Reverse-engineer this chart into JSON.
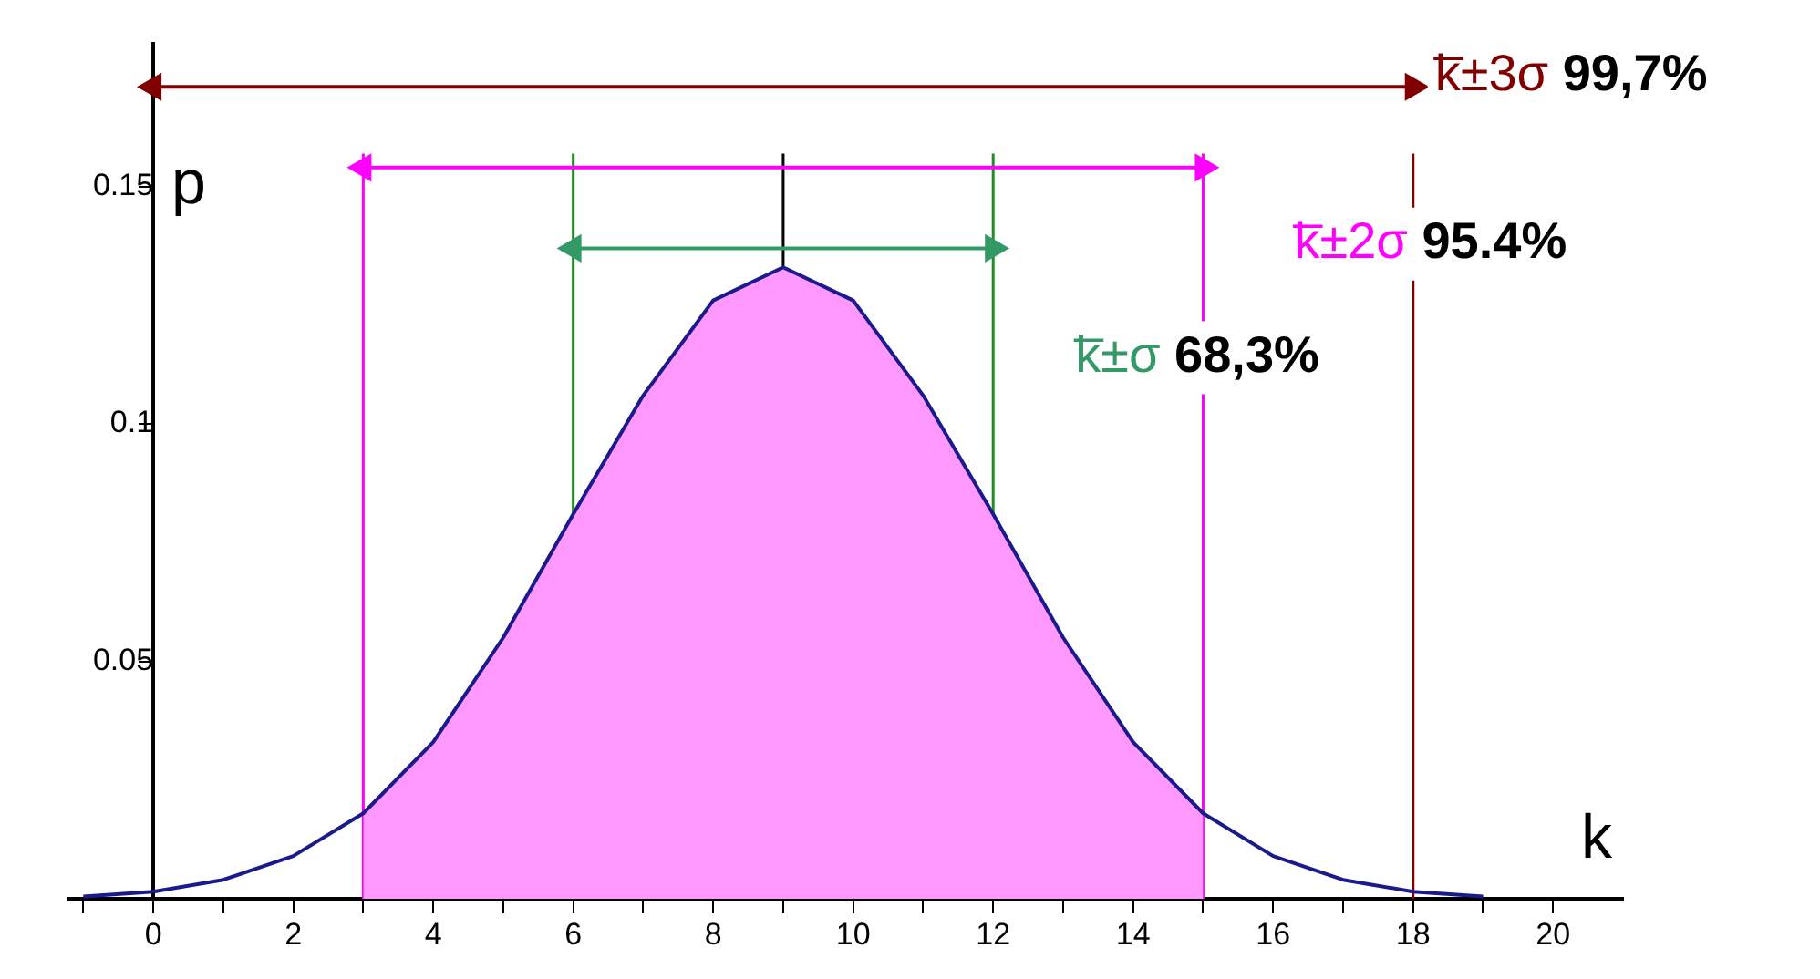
{
  "chart_data": {
    "type": "line",
    "xlabel": "k",
    "ylabel": "p",
    "x": [
      -1,
      0,
      1,
      2,
      3,
      4,
      5,
      6,
      7,
      8,
      9,
      10,
      11,
      12,
      13,
      14,
      15,
      16,
      17,
      18,
      19
    ],
    "xlim": [
      -1.2,
      21
    ],
    "ylim": [
      0,
      0.18
    ],
    "xticks": [
      {
        "value": -1,
        "label": null
      },
      0,
      {
        "value": 1,
        "label": null
      },
      2,
      {
        "value": 3,
        "label": null
      },
      4,
      {
        "value": 5,
        "label": null
      },
      6,
      {
        "value": 7,
        "label": null
      },
      8,
      {
        "value": 9,
        "label": null
      },
      10,
      {
        "value": 11,
        "label": null
      },
      12,
      {
        "value": 13,
        "label": null
      },
      14,
      {
        "value": 15,
        "label": null
      },
      16,
      {
        "value": 17,
        "label": null
      },
      18,
      {
        "value": 19,
        "label": null
      },
      20
    ],
    "yticks": [
      0.05,
      0.1,
      0.15
    ],
    "series": [
      {
        "color": "#1a1a8c",
        "values": [
          0.0005,
          0.0015,
          0.004,
          0.009,
          0.018,
          0.033,
          0.055,
          0.081,
          0.106,
          0.126,
          0.133,
          0.126,
          0.106,
          0.081,
          0.055,
          0.033,
          0.018,
          0.009,
          0.004,
          0.0015,
          0.0005
        ]
      },
      {
        "type": "area",
        "color": "#ff99ff",
        "x": [
          3,
          4,
          5,
          6,
          7,
          8,
          9,
          10,
          11,
          12,
          13,
          14,
          15
        ],
        "values": [
          0.018,
          0.033,
          0.055,
          0.081,
          0.106,
          0.126,
          0.133,
          0.126,
          0.106,
          0.081,
          0.055,
          0.033,
          0.018
        ]
      },
      {
        "type": "line",
        "marker": "triangle",
        "name": "k̅±3σ",
        "color": "#800000",
        "x": [
          0,
          18
        ],
        "values": [
          0.171,
          0.171
        ]
      },
      {
        "type": "line",
        "marker": "triangle",
        "name": "k̅±2σ",
        "color": "#ff00ff",
        "x": [
          3,
          15
        ],
        "values": [
          0.154,
          0.154
        ]
      },
      {
        "type": "line",
        "marker": "triangle",
        "name": "k̅±σ",
        "color": "#339966",
        "x": [
          6,
          12
        ],
        "values": [
          0.137,
          0.137
        ]
      }
    ],
    "annotations": [
      "99,7%",
      "95.4%",
      "68,3%"
    ],
    "ref_lines": [
      {
        "axis": "x",
        "value": 3,
        "color": "#ff00ff"
      },
      {
        "axis": "x",
        "value": 15,
        "color": "#ff00ff"
      },
      {
        "axis": "x",
        "value": 6,
        "color": "#228b22"
      },
      {
        "axis": "x",
        "value": 12,
        "color": "#228b22"
      },
      {
        "axis": "x",
        "value": 9,
        "color": "#000000"
      },
      {
        "axis": "x",
        "value": 18,
        "color": "#800000"
      }
    ],
    "grid": false,
    "legend": "top right",
    "marker": "none",
    "line_style": "solid"
  }
}
